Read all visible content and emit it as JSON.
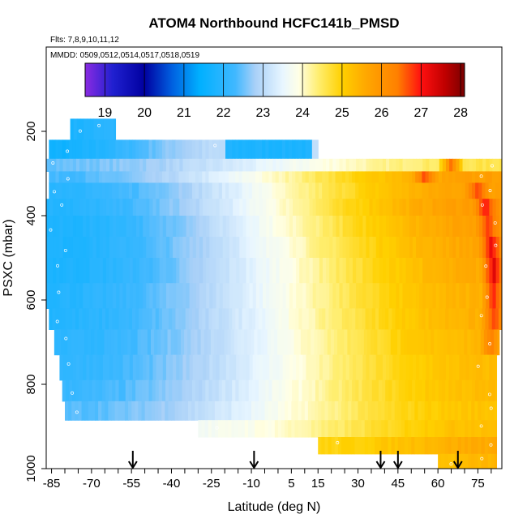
{
  "chart_data": {
    "type": "heatmap",
    "title": "ATOM4 Northbound HCFC141b_PMSD",
    "subtitle_flights": "Flts: 7,8,9,10,11,12",
    "subtitle_dates": "MMDD: 0509,0512,0514,0517,0518,0519",
    "xlabel": "Latitude (deg N)",
    "ylabel": "PSXC (mbar)",
    "xlim": [
      -87,
      84
    ],
    "ylim": [
      1000,
      0
    ],
    "x_tick_labels": [
      "-85",
      "-70",
      "-55",
      "-40",
      "-25",
      "-10",
      "5",
      "15",
      "30",
      "45",
      "60",
      "75"
    ],
    "x_tick_values": [
      -85,
      -70,
      -55,
      -40,
      -25,
      -10,
      5,
      15,
      30,
      45,
      60,
      75
    ],
    "y_tick_labels": [
      "200",
      "400",
      "600",
      "800",
      "1000"
    ],
    "y_tick_values": [
      200,
      400,
      600,
      800,
      1000
    ],
    "colorbar": {
      "min": 18.5,
      "max": 28.1,
      "tick_labels": [
        "19",
        "20",
        "21",
        "22",
        "23",
        "24",
        "25",
        "26",
        "27",
        "28"
      ],
      "tick_values": [
        19,
        20,
        21,
        22,
        23,
        24,
        25,
        26,
        27,
        28
      ],
      "stops": [
        {
          "v": 18.5,
          "c": "#8a2be2"
        },
        {
          "v": 19.2,
          "c": "#2020d0"
        },
        {
          "v": 20.0,
          "c": "#0000a0"
        },
        {
          "v": 20.7,
          "c": "#0060e0"
        },
        {
          "v": 21.4,
          "c": "#00b0ff"
        },
        {
          "v": 22.3,
          "c": "#40b8ff"
        },
        {
          "v": 22.8,
          "c": "#a8d0f8"
        },
        {
          "v": 23.5,
          "c": "#e8f6ff"
        },
        {
          "v": 23.9,
          "c": "#ffffe6"
        },
        {
          "v": 24.4,
          "c": "#ffee70"
        },
        {
          "v": 25.0,
          "c": "#ffd000"
        },
        {
          "v": 25.6,
          "c": "#ffa800"
        },
        {
          "v": 26.4,
          "c": "#ff8000"
        },
        {
          "v": 27.0,
          "c": "#ff1010"
        },
        {
          "v": 27.6,
          "c": "#c00000"
        },
        {
          "v": 28.1,
          "c": "#7a0000"
        }
      ]
    },
    "profile_latitudes": [
      -54.5,
      -9,
      38.5,
      45,
      67.5
    ],
    "layers": [
      {
        "p_top": 170,
        "p_bot": 220,
        "lat_start": -78,
        "lat_end": -61,
        "v0": 21.8,
        "v1": 22.0
      },
      {
        "p_top": 220,
        "p_bot": 265,
        "lat_start": -86,
        "lat_end": -20,
        "v0": 21.6,
        "v1": 23.0,
        "tail_lat": 15,
        "tail_v": 21.8
      },
      {
        "p_top": 265,
        "p_bot": 295,
        "lat_start": -87,
        "lat_end": 84,
        "v0": 22.5,
        "v1": 24.6,
        "hot_lat": 65,
        "hot_v": 26.5
      },
      {
        "p_top": 295,
        "p_bot": 322,
        "lat_start": -86,
        "lat_end": 84,
        "v0": 22.3,
        "v1": 25.8,
        "hot_lat": 55,
        "hot_v": 27.0
      },
      {
        "p_top": 322,
        "p_bot": 360,
        "lat_start": -86,
        "lat_end": 84,
        "v0": 22.0,
        "v1": 25.8,
        "hot_lat": 75,
        "hot_v": 26.8
      },
      {
        "p_top": 360,
        "p_bot": 400,
        "lat_start": -87,
        "lat_end": 84,
        "v0": 21.9,
        "v1": 25.9,
        "hot_lat": 78,
        "hot_v": 27.0
      },
      {
        "p_top": 400,
        "p_bot": 450,
        "lat_start": -87,
        "lat_end": 84,
        "v0": 21.8,
        "v1": 25.8,
        "hot_lat": 79,
        "hot_v": 26.9
      },
      {
        "p_top": 450,
        "p_bot": 500,
        "lat_start": -87,
        "lat_end": 84,
        "v0": 21.8,
        "v1": 25.7,
        "hot_lat": 80,
        "hot_v": 27.2
      },
      {
        "p_top": 500,
        "p_bot": 560,
        "lat_start": -87,
        "lat_end": 84,
        "v0": 21.8,
        "v1": 25.6,
        "hot_lat": 81,
        "hot_v": 27.3
      },
      {
        "p_top": 560,
        "p_bot": 620,
        "lat_start": -87,
        "lat_end": 84,
        "v0": 21.9,
        "v1": 25.5,
        "hot_lat": 81,
        "hot_v": 27.0
      },
      {
        "p_top": 620,
        "p_bot": 670,
        "lat_start": -86,
        "lat_end": 84,
        "v0": 21.9,
        "v1": 25.5,
        "hot_lat": 81,
        "hot_v": 26.8
      },
      {
        "p_top": 670,
        "p_bot": 730,
        "lat_start": -84,
        "lat_end": 83,
        "v0": 22.0,
        "v1": 25.4,
        "hot_lat": 80,
        "hot_v": 26.3
      },
      {
        "p_top": 730,
        "p_bot": 790,
        "lat_start": -82,
        "lat_end": 82,
        "v0": 22.1,
        "v1": 25.3
      },
      {
        "p_top": 790,
        "p_bot": 840,
        "lat_start": -81,
        "lat_end": 82,
        "v0": 22.2,
        "v1": 25.3
      },
      {
        "p_top": 840,
        "p_bot": 885,
        "lat_start": -80,
        "lat_end": 82,
        "v0": 22.4,
        "v1": 25.2
      },
      {
        "p_top": 885,
        "p_bot": 925,
        "lat_start": -30,
        "lat_end": 82,
        "v0": 23.7,
        "v1": 25.3
      },
      {
        "p_top": 925,
        "p_bot": 965,
        "lat_start": 15,
        "lat_end": 82,
        "v0": 24.9,
        "v1": 25.6
      },
      {
        "p_top": 965,
        "p_bot": 1000,
        "lat_start": 60,
        "lat_end": 82,
        "v0": 25.2,
        "v1": 25.4
      }
    ]
  }
}
